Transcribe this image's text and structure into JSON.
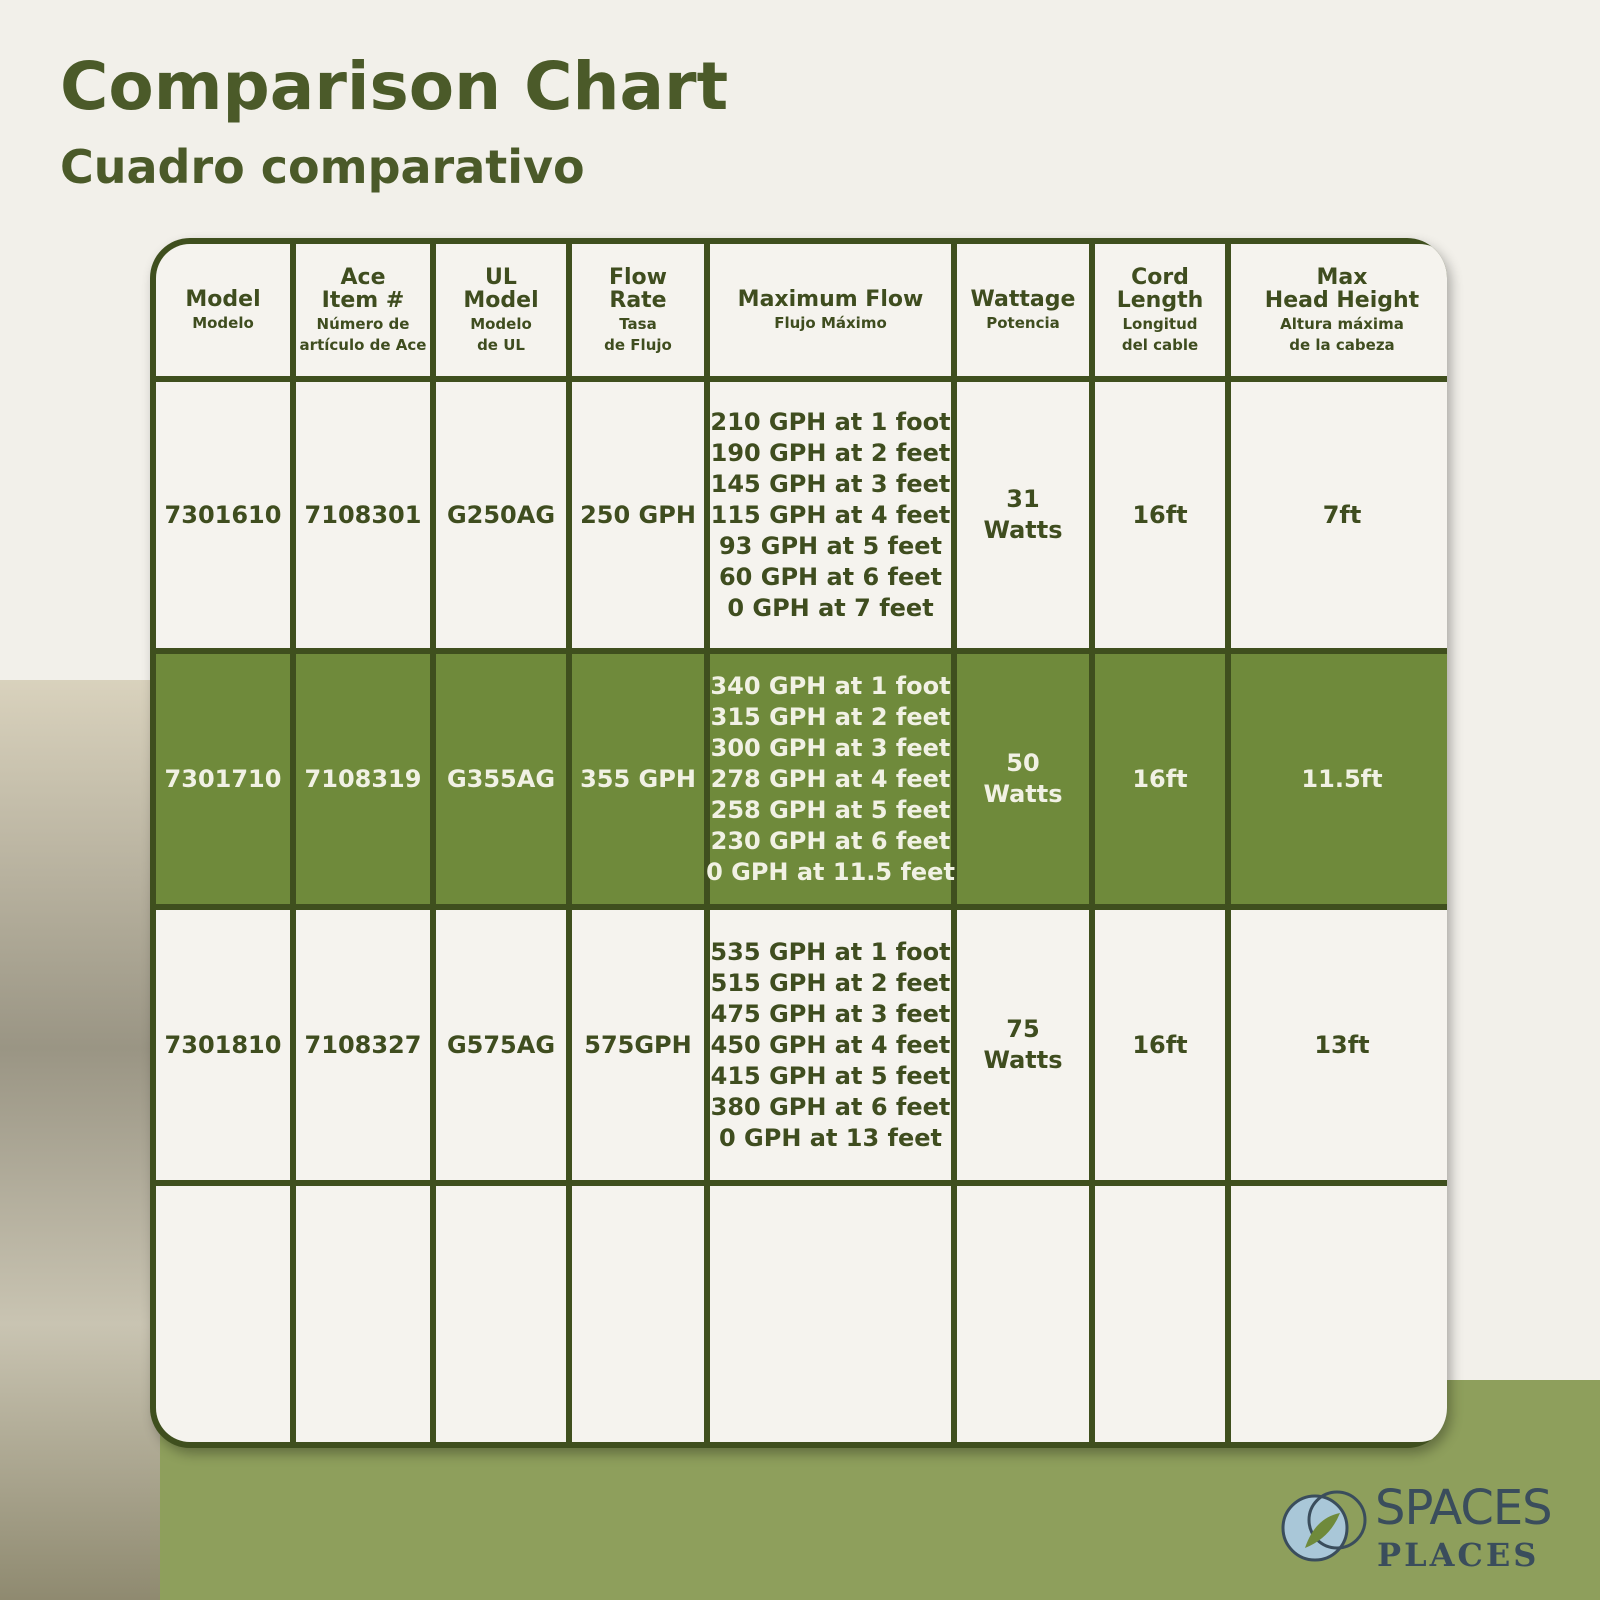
{
  "header": {
    "title": "Comparison Chart",
    "subtitle": "Cuadro comparativo"
  },
  "table": {
    "columns": [
      {
        "title": [
          "Model"
        ],
        "subtitle": [
          "Modelo"
        ]
      },
      {
        "title": [
          "Ace",
          "Item #"
        ],
        "subtitle": [
          "Número de",
          "artículo de Ace"
        ]
      },
      {
        "title": [
          "UL",
          "Model"
        ],
        "subtitle": [
          "Modelo",
          "de UL"
        ]
      },
      {
        "title": [
          "Flow",
          "Rate"
        ],
        "subtitle": [
          "Tasa",
          "de Flujo"
        ]
      },
      {
        "title": [
          "Maximum Flow"
        ],
        "subtitle": [
          "Flujo Máximo"
        ]
      },
      {
        "title": [
          "Wattage"
        ],
        "subtitle": [
          "Potencia"
        ]
      },
      {
        "title": [
          "Cord",
          "Length"
        ],
        "subtitle": [
          "Longitud",
          "del cable"
        ]
      },
      {
        "title": [
          "Max",
          "Head Height"
        ],
        "subtitle": [
          "Altura máxima",
          "de la cabeza"
        ]
      }
    ],
    "rows": [
      [
        [
          "7301610"
        ],
        [
          "7108301"
        ],
        [
          "G250AG"
        ],
        [
          "250 GPH"
        ],
        [
          "210 GPH at 1 foot",
          "190 GPH at 2 feet",
          "145 GPH at 3 feet",
          "115 GPH at 4 feet",
          "93 GPH at 5 feet",
          "60 GPH at 6 feet",
          "0 GPH at 7 feet"
        ],
        [
          "31",
          "Watts"
        ],
        [
          "16ft"
        ],
        [
          "7ft"
        ]
      ],
      [
        [
          "7301710"
        ],
        [
          "7108319"
        ],
        [
          "G355AG"
        ],
        [
          "355 GPH"
        ],
        [
          "340 GPH at 1 foot",
          "315 GPH at 2 feet",
          "300 GPH at 3 feet",
          "278 GPH at 4 feet",
          "258 GPH at 5 feet",
          "230 GPH at 6 feet",
          "0 GPH at 11.5 feet"
        ],
        [
          "50",
          "Watts"
        ],
        [
          "16ft"
        ],
        [
          "11.5ft"
        ]
      ],
      [
        [
          "7301810"
        ],
        [
          "7108327"
        ],
        [
          "G575AG"
        ],
        [
          "575GPH"
        ],
        [
          "535 GPH at 1 foot",
          "515 GPH at 2 feet",
          "475 GPH at 3 feet",
          "450 GPH at 4 feet",
          "415 GPH at 5 feet",
          "380 GPH at 6 feet",
          "0 GPH at 13 feet"
        ],
        [
          "75",
          "Watts"
        ],
        [
          "16ft"
        ],
        [
          "13ft"
        ]
      ]
    ]
  },
  "brand": {
    "line1": "SPACES",
    "line2": "PLACES"
  }
}
